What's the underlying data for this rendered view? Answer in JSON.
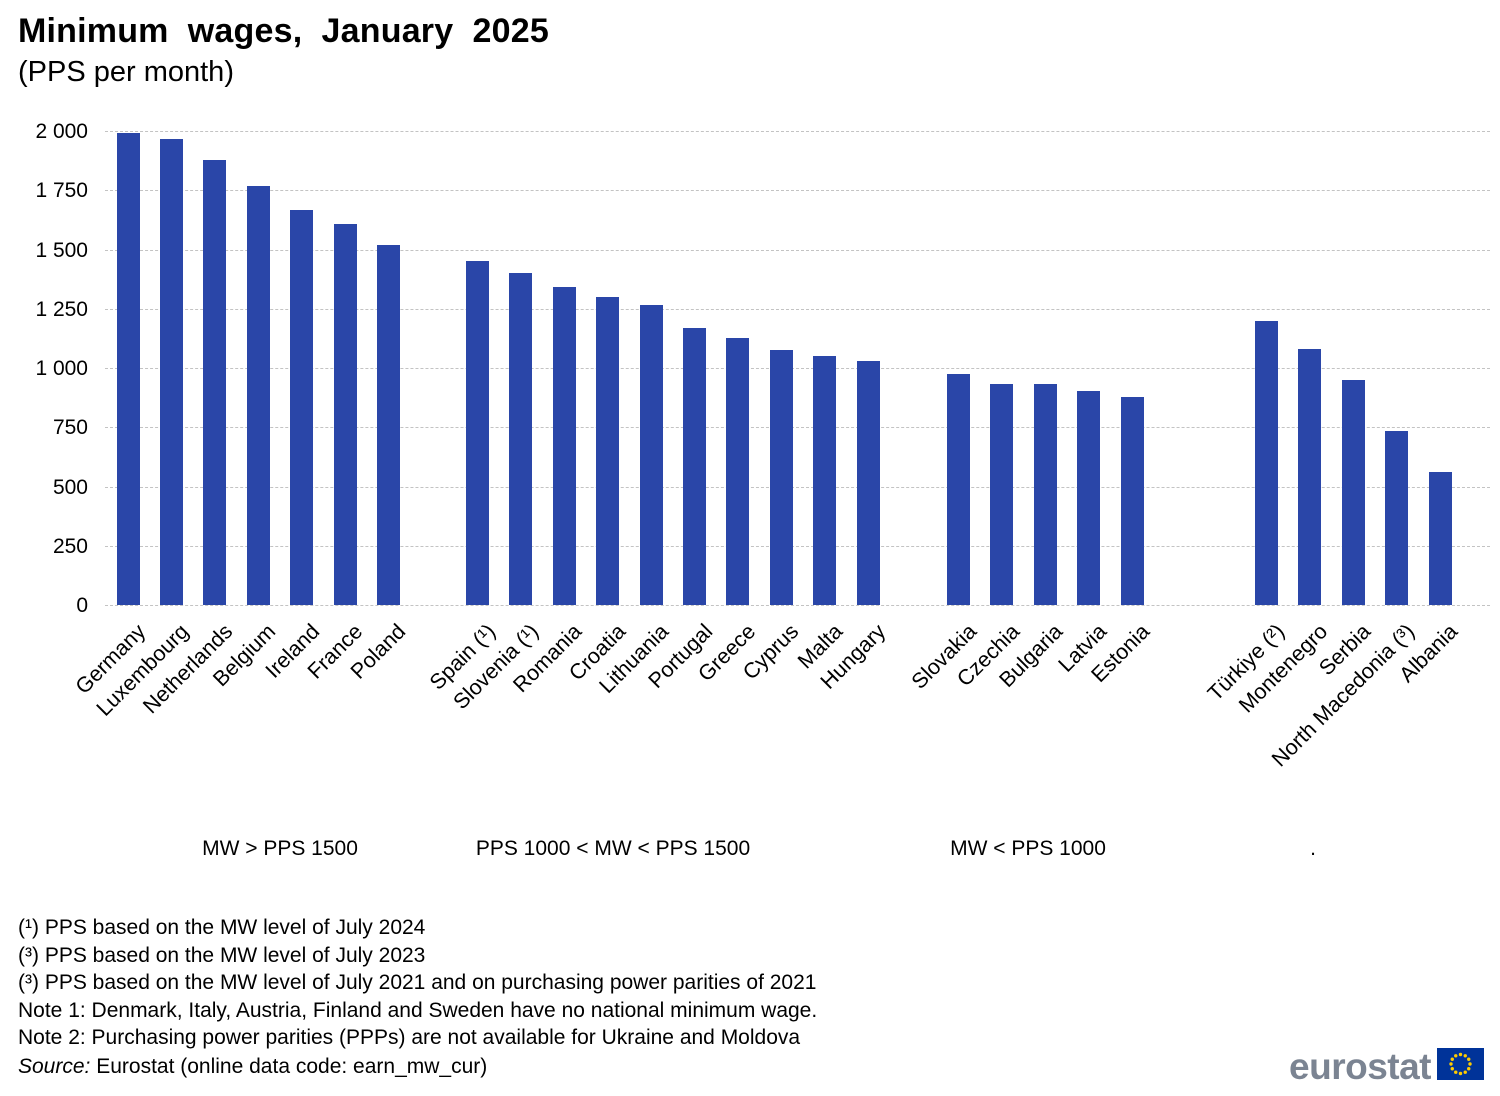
{
  "title": "Minimum wages, January 2025",
  "subtitle": "(PPS per month)",
  "chart_data": {
    "type": "bar",
    "title": "Minimum wages, January 2025",
    "subtitle": "(PPS per month)",
    "ylabel": "",
    "xlabel": "",
    "ylim": [
      0,
      2000
    ],
    "ytick_values": [
      0,
      250,
      500,
      750,
      1000,
      1250,
      1500,
      1750,
      2000
    ],
    "ytick_labels": [
      "0",
      "250",
      "500",
      "750",
      "1 000",
      "1 250",
      "1 500",
      "1 750",
      "2 000"
    ],
    "grid": "horizontal-dashed",
    "legend": "none",
    "bar_color": "#2a46a8",
    "groups": [
      {
        "label": "MW > PPS 1500",
        "countries": [
          "Germany",
          "Luxembourg",
          "Netherlands",
          "Belgium",
          "Ireland",
          "France",
          "Poland"
        ],
        "values": [
          1992,
          1968,
          1878,
          1766,
          1665,
          1608,
          1521
        ]
      },
      {
        "label": "PPS 1000 < MW < PPS 1500",
        "countries": [
          "Spain (¹)",
          "Slovenia (¹)",
          "Romania",
          "Croatia",
          "Lithuania",
          "Portugal",
          "Greece",
          "Cyprus",
          "Malta",
          "Hungary"
        ],
        "values": [
          1451,
          1400,
          1342,
          1300,
          1266,
          1168,
          1128,
          1074,
          1052,
          1031
        ]
      },
      {
        "label": "MW < PPS 1000",
        "countries": [
          "Slovakia",
          "Czechia",
          "Bulgaria",
          "Latvia",
          "Estonia"
        ],
        "values": [
          974,
          933,
          931,
          903,
          878
        ]
      },
      {
        "label": ".",
        "countries": [
          "Türkiye (²)",
          "Montenegro",
          "Serbia",
          "North Macedonia (³)",
          "Albania"
        ],
        "values": [
          1197,
          1079,
          948,
          733,
          561
        ]
      }
    ]
  },
  "footnotes": [
    "(¹) PPS based on the MW level of July 2024",
    "(³) PPS based on the MW level of July 2023",
    "(³) PPS based on the MW level of July 2021 and on purchasing power parities of 2021",
    "Note 1: Denmark, Italy, Austria, Finland and Sweden have no national minimum wage.",
    "Note 2: Purchasing power parities (PPPs) are not available for Ukraine and Moldova"
  ],
  "source": {
    "prefix": "Source:",
    "text": " Eurostat (online data code: earn_mw_cur)"
  },
  "logo": {
    "text": "eurostat"
  }
}
